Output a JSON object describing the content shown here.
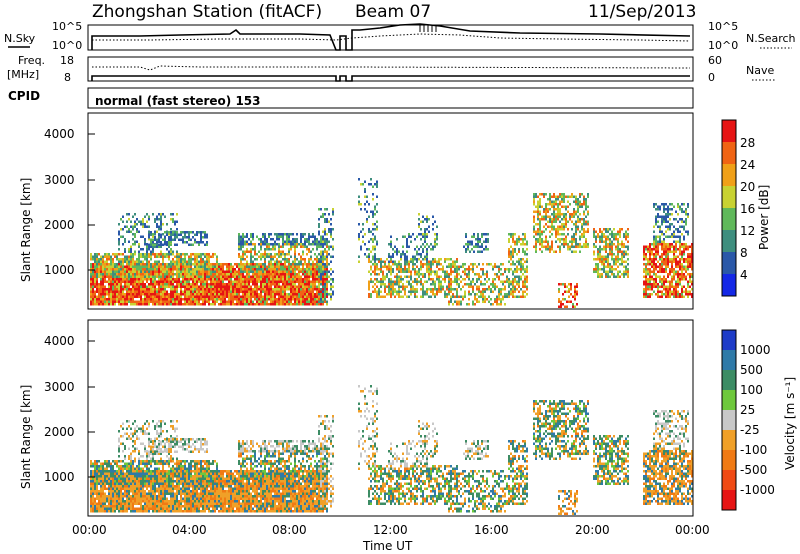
{
  "header": {
    "station": "Zhongshan Station (fitACF)",
    "beam": "Beam 07",
    "date": "11/Sep/2013"
  },
  "top_panel": {
    "left_label": "N.Sky",
    "right_label": "N.Search",
    "left_ticks": [
      "10^5",
      "10^0"
    ],
    "right_ticks": [
      "10^5",
      "10^0"
    ]
  },
  "freq_panel": {
    "left_label_1": "Freq.",
    "left_label_2": "[MHz]",
    "right_label": "Nave",
    "left_ticks": [
      "18",
      "8"
    ],
    "right_ticks": [
      "60",
      "0"
    ]
  },
  "cpid": {
    "label": "CPID",
    "mode": "normal (fast stereo) 153"
  },
  "chart_data": [
    {
      "type": "heatmap",
      "name": "power",
      "ylabel": "Slant Range [km]",
      "xlabel": "",
      "yticks": [
        "4000",
        "3000",
        "2000",
        "1000"
      ],
      "ylim": [
        180,
        4500
      ],
      "colorbar_label": "Power [dB]",
      "colorbar_ticks": [
        "28",
        "24",
        "20",
        "16",
        "12",
        "8",
        "4"
      ],
      "colorbar_range": [
        0,
        32
      ],
      "colors": [
        "#1428e6",
        "#2a58a8",
        "#3e8e7e",
        "#5fb85a",
        "#c8d232",
        "#f0a018",
        "#f06414",
        "#e61414"
      ]
    },
    {
      "type": "heatmap",
      "name": "velocity",
      "ylabel": "Slant Range [km]",
      "xlabel": "Time UT",
      "yticks": [
        "4000",
        "3000",
        "2000",
        "1000"
      ],
      "ylim": [
        180,
        4500
      ],
      "xticks": [
        "00:00",
        "04:00",
        "08:00",
        "12:00",
        "16:00",
        "20:00",
        "00:00"
      ],
      "colorbar_label": "Velocity [m s⁻¹]",
      "colorbar_ticks": [
        "1000",
        "500",
        "100",
        "25",
        "-25",
        "-100",
        "-500",
        "-1000"
      ],
      "colors": [
        "#1e3cc8",
        "#2f7aa8",
        "#3c8c64",
        "#6ec83c",
        "#c8c8c8",
        "#f0a028",
        "#f07a14",
        "#f04a14",
        "#e61414"
      ]
    }
  ]
}
